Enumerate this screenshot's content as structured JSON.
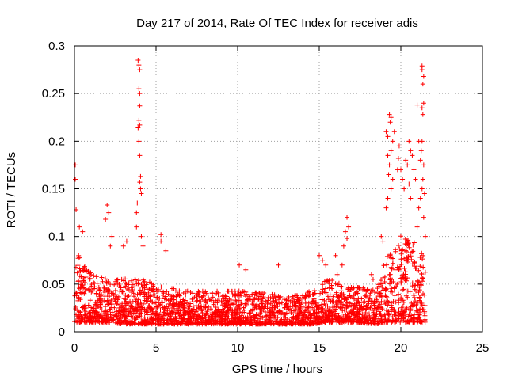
{
  "chart_data": {
    "type": "scatter",
    "title": "Day 217 of 2014, Rate Of TEC Index for receiver adis",
    "xlabel": "GPS time / hours",
    "ylabel": "ROTI / TECUs",
    "xlim": [
      0,
      25
    ],
    "ylim": [
      0,
      0.3
    ],
    "xticks": [
      0,
      5,
      10,
      15,
      20,
      25
    ],
    "xtick_labels": [
      "0",
      "5",
      "10",
      "15",
      "20",
      "25"
    ],
    "yticks": [
      0,
      0.05,
      0.1,
      0.15,
      0.2,
      0.25,
      0.3
    ],
    "ytick_labels": [
      "0",
      "0.05",
      "0.1",
      "0.15",
      "0.2",
      "0.25",
      "0.3"
    ],
    "grid": true,
    "marker": "+",
    "series": [
      {
        "name": "ROTI",
        "color": "#ff0000",
        "x_range": [
          0,
          21.5
        ],
        "baseline_envelope": [
          [
            0,
            0.01,
            0.07
          ],
          [
            0.5,
            0.01,
            0.06
          ],
          [
            1,
            0.01,
            0.05
          ],
          [
            2,
            0.01,
            0.045
          ],
          [
            3,
            0.008,
            0.045
          ],
          [
            4,
            0.008,
            0.045
          ],
          [
            5,
            0.008,
            0.04
          ],
          [
            7,
            0.008,
            0.035
          ],
          [
            9,
            0.008,
            0.035
          ],
          [
            11,
            0.008,
            0.035
          ],
          [
            13,
            0.008,
            0.03
          ],
          [
            14.5,
            0.008,
            0.035
          ],
          [
            15.5,
            0.01,
            0.045
          ],
          [
            17,
            0.01,
            0.04
          ],
          [
            18.5,
            0.008,
            0.035
          ],
          [
            19,
            0.01,
            0.06
          ],
          [
            20,
            0.01,
            0.08
          ],
          [
            21,
            0.01,
            0.075
          ],
          [
            21.5,
            0.01,
            0.06
          ]
        ],
        "spikes": [
          {
            "x": 0.05,
            "y": 0.175
          },
          {
            "x": 0.05,
            "y": 0.16
          },
          {
            "x": 0.1,
            "y": 0.128
          },
          {
            "x": 0.3,
            "y": 0.11
          },
          {
            "x": 0.5,
            "y": 0.105
          },
          {
            "x": 2.0,
            "y": 0.133
          },
          {
            "x": 2.1,
            "y": 0.125
          },
          {
            "x": 1.9,
            "y": 0.118
          },
          {
            "x": 2.3,
            "y": 0.1
          },
          {
            "x": 2.2,
            "y": 0.09
          },
          {
            "x": 3.8,
            "y": 0.11
          },
          {
            "x": 3.8,
            "y": 0.125
          },
          {
            "x": 3.85,
            "y": 0.135
          },
          {
            "x": 3.9,
            "y": 0.285
          },
          {
            "x": 3.95,
            "y": 0.28
          },
          {
            "x": 4.0,
            "y": 0.275
          },
          {
            "x": 3.95,
            "y": 0.255
          },
          {
            "x": 4.0,
            "y": 0.25
          },
          {
            "x": 4.0,
            "y": 0.237
          },
          {
            "x": 3.95,
            "y": 0.222
          },
          {
            "x": 4.0,
            "y": 0.217
          },
          {
            "x": 3.9,
            "y": 0.214
          },
          {
            "x": 3.95,
            "y": 0.2
          },
          {
            "x": 4.0,
            "y": 0.185
          },
          {
            "x": 4.05,
            "y": 0.163
          },
          {
            "x": 4.0,
            "y": 0.157
          },
          {
            "x": 4.05,
            "y": 0.15
          },
          {
            "x": 4.1,
            "y": 0.145
          },
          {
            "x": 4.1,
            "y": 0.1
          },
          {
            "x": 4.2,
            "y": 0.09
          },
          {
            "x": 5.3,
            "y": 0.102
          },
          {
            "x": 5.3,
            "y": 0.095
          },
          {
            "x": 5.6,
            "y": 0.085
          },
          {
            "x": 3.2,
            "y": 0.095
          },
          {
            "x": 3.0,
            "y": 0.09
          },
          {
            "x": 12.5,
            "y": 0.07
          },
          {
            "x": 10.1,
            "y": 0.07
          },
          {
            "x": 10.5,
            "y": 0.065
          },
          {
            "x": 16.1,
            "y": 0.06
          },
          {
            "x": 16.4,
            "y": 0.07
          },
          {
            "x": 15.0,
            "y": 0.08
          },
          {
            "x": 15.2,
            "y": 0.075
          },
          {
            "x": 15.4,
            "y": 0.07
          },
          {
            "x": 16.0,
            "y": 0.08
          },
          {
            "x": 16.7,
            "y": 0.12
          },
          {
            "x": 16.8,
            "y": 0.11
          },
          {
            "x": 16.6,
            "y": 0.105
          },
          {
            "x": 16.7,
            "y": 0.098
          },
          {
            "x": 16.5,
            "y": 0.09
          },
          {
            "x": 18.2,
            "y": 0.06
          },
          {
            "x": 18.3,
            "y": 0.055
          },
          {
            "x": 18.8,
            "y": 0.1
          },
          {
            "x": 18.9,
            "y": 0.095
          },
          {
            "x": 19.1,
            "y": 0.21
          },
          {
            "x": 19.2,
            "y": 0.205
          },
          {
            "x": 19.3,
            "y": 0.228
          },
          {
            "x": 19.35,
            "y": 0.22
          },
          {
            "x": 19.4,
            "y": 0.225
          },
          {
            "x": 19.2,
            "y": 0.185
          },
          {
            "x": 19.3,
            "y": 0.175
          },
          {
            "x": 19.4,
            "y": 0.19
          },
          {
            "x": 19.5,
            "y": 0.2
          },
          {
            "x": 19.6,
            "y": 0.21
          },
          {
            "x": 19.25,
            "y": 0.165
          },
          {
            "x": 19.5,
            "y": 0.16
          },
          {
            "x": 19.2,
            "y": 0.14
          },
          {
            "x": 19.4,
            "y": 0.15
          },
          {
            "x": 19.1,
            "y": 0.13
          },
          {
            "x": 19.8,
            "y": 0.17
          },
          {
            "x": 19.9,
            "y": 0.195
          },
          {
            "x": 19.85,
            "y": 0.182
          },
          {
            "x": 20.0,
            "y": 0.17
          },
          {
            "x": 20.1,
            "y": 0.16
          },
          {
            "x": 20.3,
            "y": 0.18
          },
          {
            "x": 20.4,
            "y": 0.175
          },
          {
            "x": 20.5,
            "y": 0.2
          },
          {
            "x": 20.6,
            "y": 0.19
          },
          {
            "x": 20.7,
            "y": 0.185
          },
          {
            "x": 20.8,
            "y": 0.17
          },
          {
            "x": 20.9,
            "y": 0.16
          },
          {
            "x": 20.5,
            "y": 0.155
          },
          {
            "x": 20.2,
            "y": 0.15
          },
          {
            "x": 20.6,
            "y": 0.14
          },
          {
            "x": 21.0,
            "y": 0.238
          },
          {
            "x": 21.1,
            "y": 0.2
          },
          {
            "x": 21.2,
            "y": 0.18
          },
          {
            "x": 21.3,
            "y": 0.279
          },
          {
            "x": 21.3,
            "y": 0.275
          },
          {
            "x": 21.4,
            "y": 0.268
          },
          {
            "x": 21.35,
            "y": 0.26
          },
          {
            "x": 21.4,
            "y": 0.24
          },
          {
            "x": 21.3,
            "y": 0.235
          },
          {
            "x": 21.35,
            "y": 0.228
          },
          {
            "x": 21.3,
            "y": 0.2
          },
          {
            "x": 21.25,
            "y": 0.19
          },
          {
            "x": 21.4,
            "y": 0.175
          },
          {
            "x": 21.35,
            "y": 0.16
          },
          {
            "x": 21.3,
            "y": 0.15
          },
          {
            "x": 21.2,
            "y": 0.14
          },
          {
            "x": 21.1,
            "y": 0.13
          },
          {
            "x": 21.4,
            "y": 0.12
          },
          {
            "x": 21.45,
            "y": 0.145
          },
          {
            "x": 21.5,
            "y": 0.1
          },
          {
            "x": 21.0,
            "y": 0.11
          }
        ]
      }
    ]
  }
}
